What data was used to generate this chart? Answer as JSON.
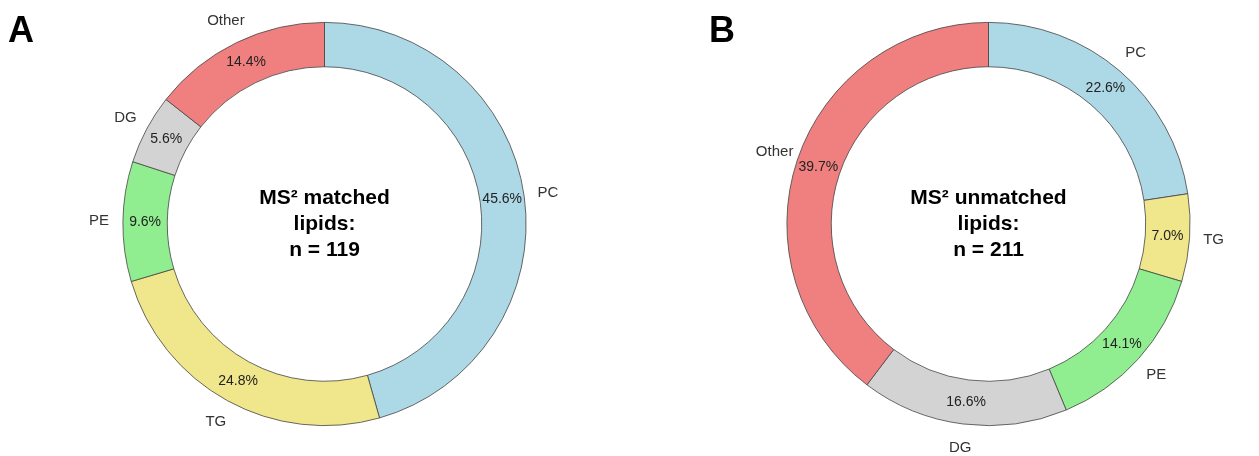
{
  "chart_data": [
    {
      "type": "donut",
      "title": "A",
      "categories": [
        "PC",
        "TG",
        "PE",
        "DG",
        "Other"
      ],
      "values": [
        45.6,
        24.8,
        9.6,
        5.6,
        14.4
      ],
      "colors": [
        "#add8e6",
        "#f0e68c",
        "#90ee90",
        "#d3d3d3",
        "#f08080"
      ],
      "value_labels": [
        "45.6%",
        "24.8%",
        "9.6%",
        "5.6%",
        "14.4%"
      ],
      "annotations": [
        "MS² matched lipids:",
        "n = 119"
      ],
      "legend": false
    },
    {
      "type": "donut",
      "title": "B",
      "categories": [
        "PC",
        "TG",
        "PE",
        "DG",
        "Other"
      ],
      "values": [
        22.6,
        7.0,
        14.1,
        16.6,
        39.7
      ],
      "colors": [
        "#add8e6",
        "#f0e68c",
        "#90ee90",
        "#d3d3d3",
        "#f08080"
      ],
      "value_labels": [
        "22.6%",
        "7.0%",
        "14.1%",
        "16.6%",
        "39.7%"
      ],
      "annotations": [
        "MS² unmatched lipids:",
        "n = 211"
      ],
      "legend": false
    }
  ]
}
